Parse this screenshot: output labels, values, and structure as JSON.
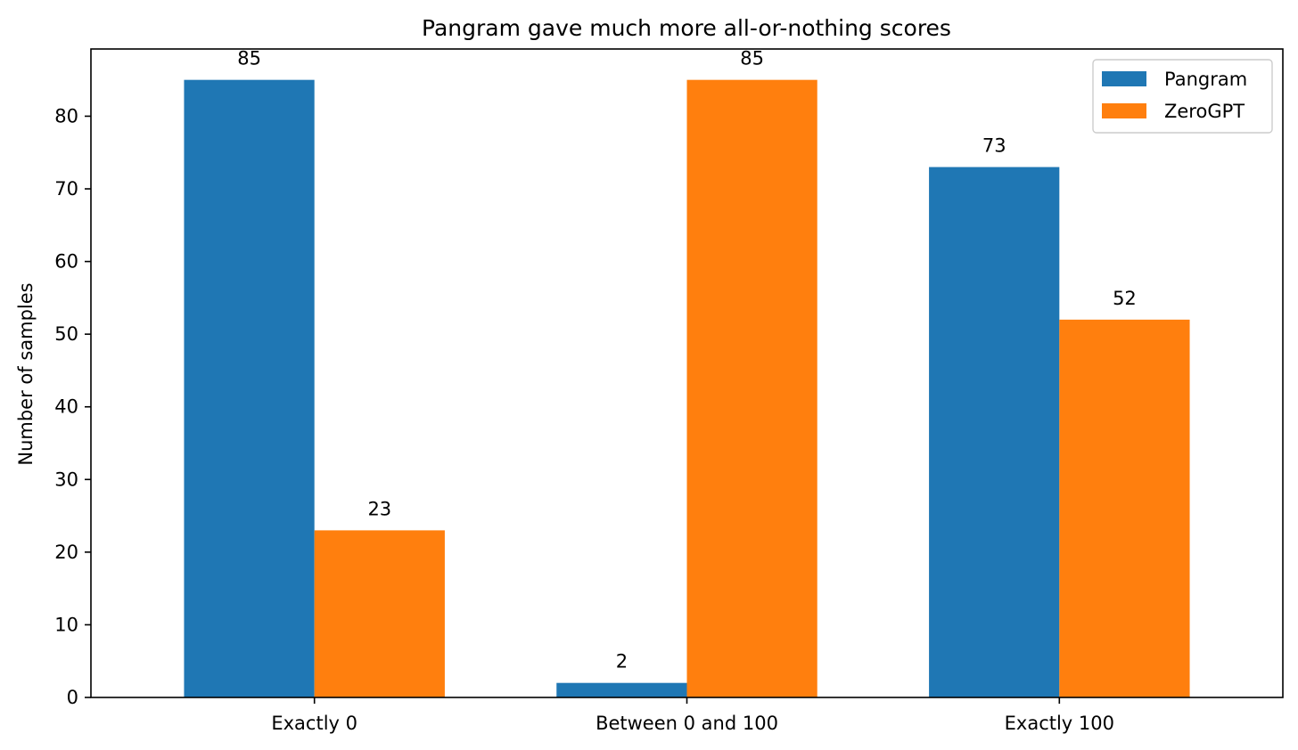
{
  "chart_data": {
    "type": "bar",
    "title": "Pangram gave much more all-or-nothing scores",
    "xlabel": "",
    "ylabel": "Number of samples",
    "categories": [
      "Exactly 0",
      "Between 0 and 100",
      "Exactly 100"
    ],
    "series": [
      {
        "name": "Pangram",
        "values": [
          85,
          2,
          73
        ],
        "color": "#1f77b4"
      },
      {
        "name": "ZeroGPT",
        "values": [
          23,
          85,
          52
        ],
        "color": "#ff7f0e"
      }
    ],
    "ylim": [
      0,
      89.25
    ],
    "yticks": [
      0,
      10,
      20,
      30,
      40,
      50,
      60,
      70,
      80
    ],
    "data_labels": true,
    "grid": false,
    "legend_position": "top-right"
  }
}
